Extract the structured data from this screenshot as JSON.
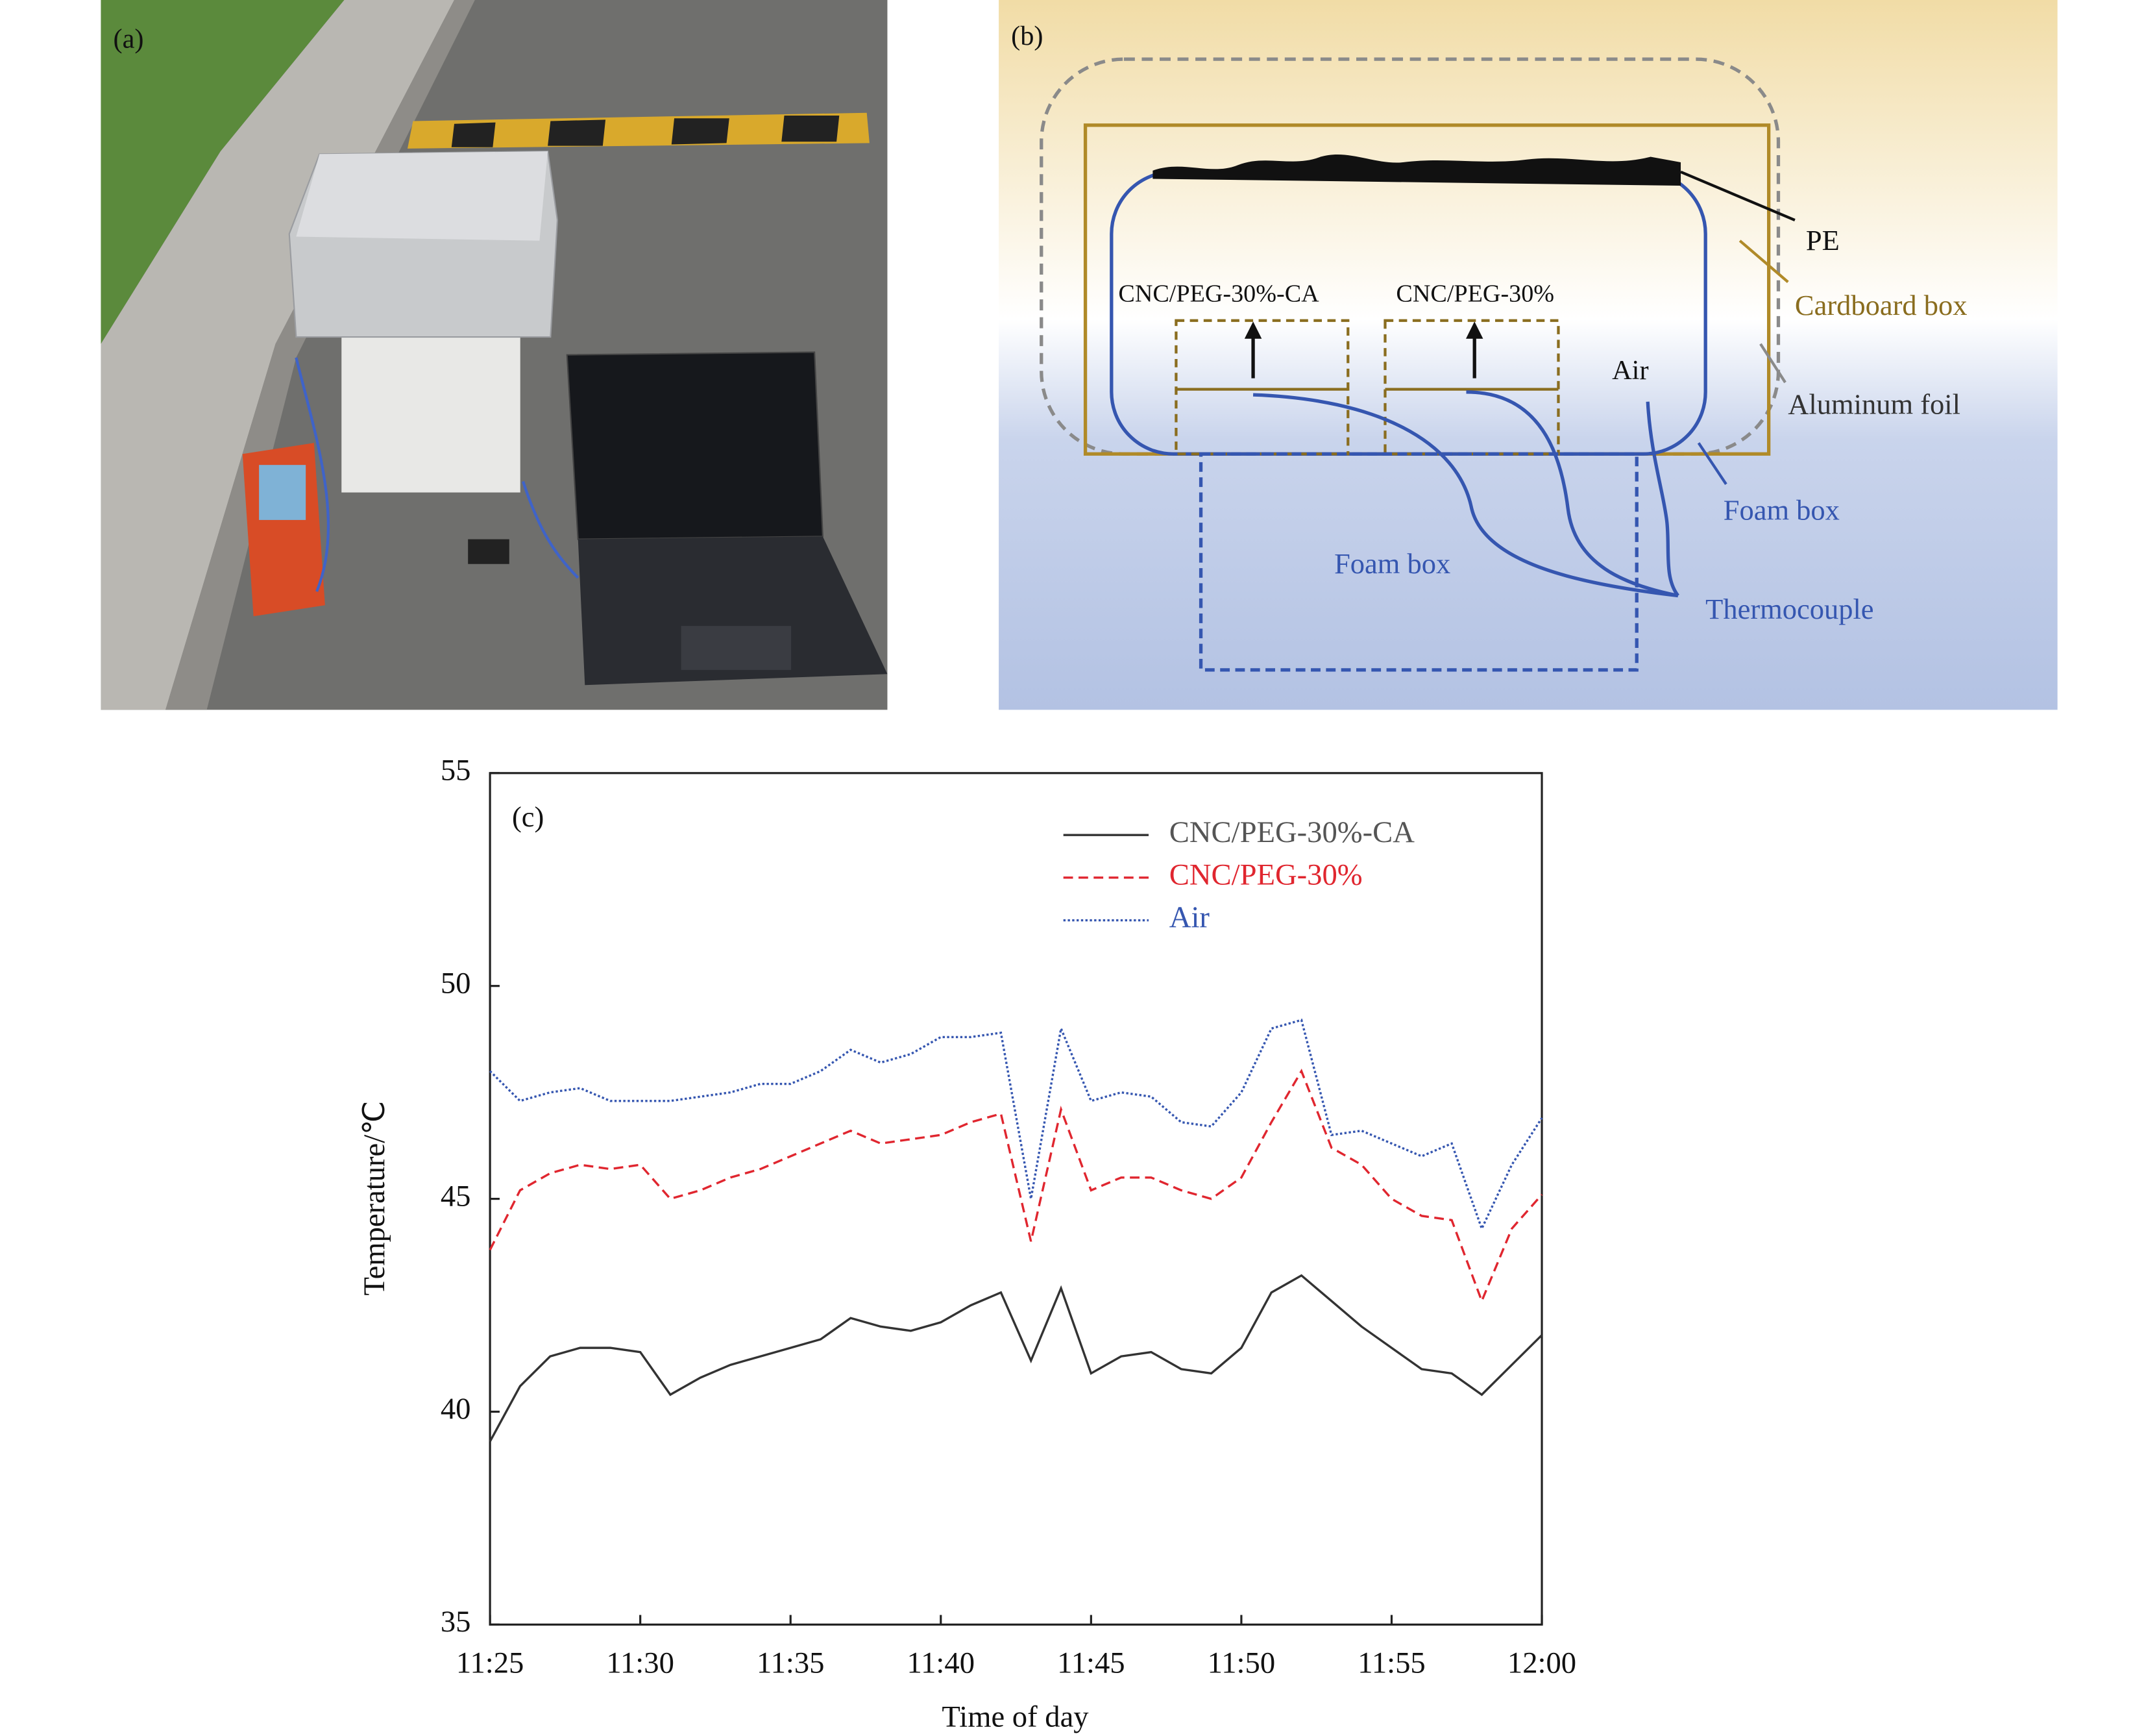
{
  "panels": {
    "a": {
      "label": "(a)"
    },
    "b": {
      "label": "(b)",
      "labels": {
        "pe": "PE",
        "cardboard_box": "Cardboard box",
        "sample_ca": "CNC/PEG-30%-CA",
        "sample": "CNC/PEG-30%",
        "air": "Air",
        "aluminum_foil": "Aluminum foil",
        "foam_box_outer": "Foam box",
        "foam_box_inner": "Foam box",
        "thermocouple": "Thermocouple"
      }
    }
  },
  "chart_data": {
    "type": "line",
    "annotation": "(c)",
    "x_label": "Time of day",
    "y_label": "Temperature/℃",
    "x": [
      "11:25",
      "11:26",
      "11:27",
      "11:28",
      "11:29",
      "11:30",
      "11:31",
      "11:32",
      "11:33",
      "11:34",
      "11:35",
      "11:36",
      "11:37",
      "11:38",
      "11:39",
      "11:40",
      "11:41",
      "11:42",
      "11:43",
      "11:44",
      "11:45",
      "11:46",
      "11:47",
      "11:48",
      "11:49",
      "11:50",
      "11:51",
      "11:52",
      "11:53",
      "11:54",
      "11:55",
      "11:56",
      "11:57",
      "11:58",
      "11:59",
      "12:00"
    ],
    "series": [
      {
        "name": "CNC/PEG-30%-CA",
        "color": "#333333",
        "style": "solid",
        "values": [
          39.3,
          40.6,
          41.3,
          41.5,
          41.5,
          41.4,
          40.4,
          40.8,
          41.1,
          41.3,
          41.5,
          41.7,
          42.2,
          42.0,
          41.9,
          42.1,
          42.5,
          42.8,
          41.2,
          42.9,
          40.9,
          41.3,
          41.4,
          41.0,
          40.9,
          41.5,
          42.8,
          43.2,
          42.6,
          42.0,
          41.5,
          41.0,
          40.9,
          40.4,
          41.1,
          41.8
        ]
      },
      {
        "name": "CNC/PEG-30%",
        "color": "#e0262f",
        "style": "dashed",
        "values": [
          43.8,
          45.2,
          45.6,
          45.8,
          45.7,
          45.8,
          45.0,
          45.2,
          45.5,
          45.7,
          46.0,
          46.3,
          46.6,
          46.3,
          46.4,
          46.5,
          46.8,
          47.0,
          44.0,
          47.1,
          45.2,
          45.5,
          45.5,
          45.2,
          45.0,
          45.5,
          46.8,
          48.0,
          46.2,
          45.8,
          45.0,
          44.6,
          44.5,
          42.6,
          44.3,
          45.1
        ]
      },
      {
        "name": "Air",
        "color": "#3556b0",
        "style": "dotted",
        "values": [
          48.0,
          47.3,
          47.5,
          47.6,
          47.3,
          47.3,
          47.3,
          47.4,
          47.5,
          47.7,
          47.7,
          48.0,
          48.5,
          48.2,
          48.4,
          48.8,
          48.8,
          48.9,
          45.0,
          49.0,
          47.3,
          47.5,
          47.4,
          46.8,
          46.7,
          47.5,
          49.0,
          49.2,
          46.5,
          46.6,
          46.3,
          46.0,
          46.3,
          44.3,
          45.8,
          46.9
        ]
      }
    ],
    "xlim": [
      "11:25",
      "12:00"
    ],
    "xticks": [
      "11:25",
      "11:30",
      "11:35",
      "11:40",
      "11:45",
      "11:50",
      "11:55",
      "12:00"
    ],
    "ylim": [
      35,
      55
    ],
    "yticks": [
      35,
      40,
      45,
      50,
      55
    ],
    "grid": false,
    "legend": "upper right"
  }
}
